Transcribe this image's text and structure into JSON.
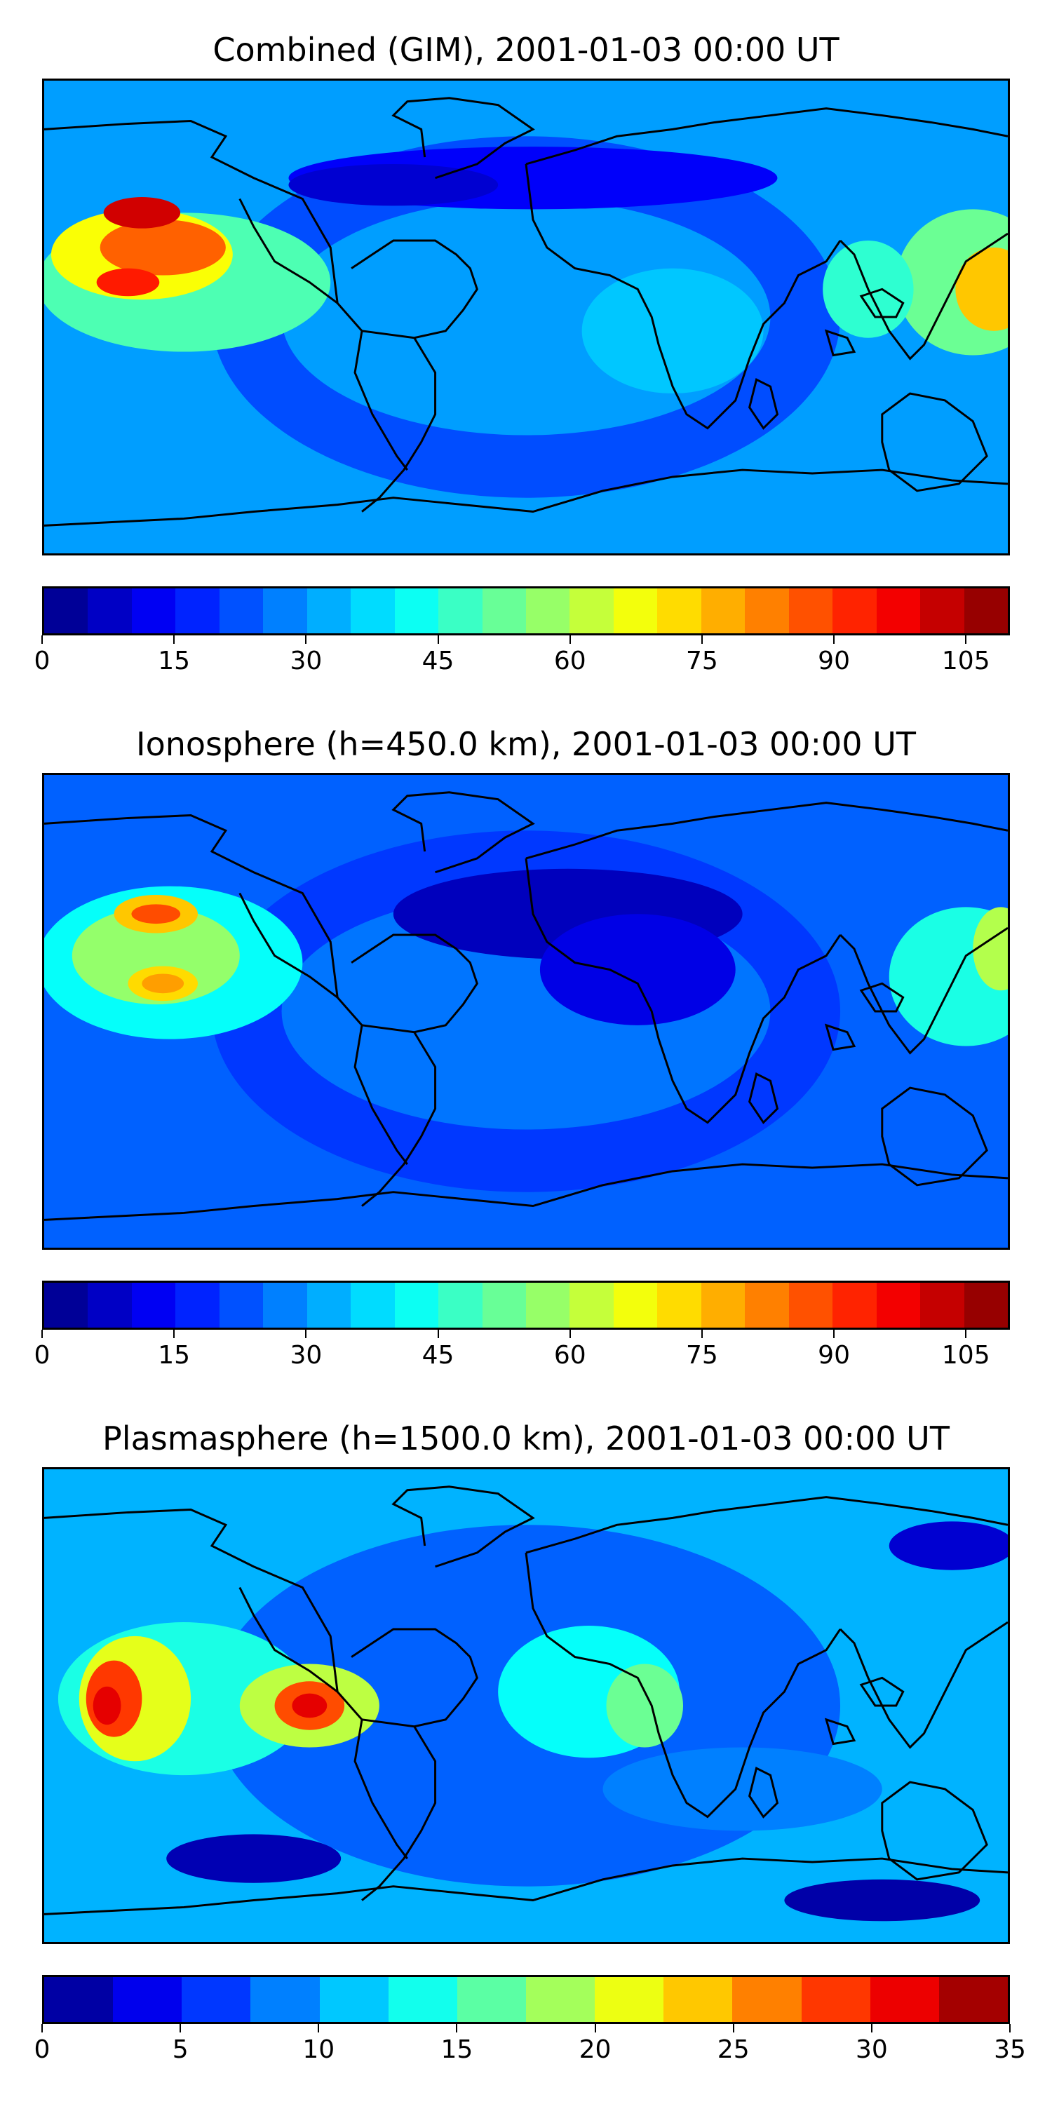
{
  "chart_data": [
    {
      "type": "heatmap",
      "title": "Combined (GIM), 2001-01-03 00:00 UT",
      "colorbar": {
        "min": 0,
        "max": 110,
        "step": 5,
        "ticks": [
          0,
          15,
          30,
          45,
          60,
          75,
          90,
          105
        ]
      },
      "features": [
        {
          "region": "Pacific west of Central America",
          "value": 105
        },
        {
          "region": "Pacific west of northern South America",
          "value": 95
        },
        {
          "region": "Western Pacific near Australia/Indonesia",
          "value": 75
        },
        {
          "region": "North Atlantic / Europe",
          "value": 10
        }
      ]
    },
    {
      "type": "heatmap",
      "title": "Ionosphere  (h=450.0 km), 2001-01-03 00:00 UT",
      "colorbar": {
        "min": 0,
        "max": 110,
        "step": 5,
        "ticks": [
          0,
          15,
          30,
          45,
          60,
          75,
          90,
          105
        ]
      },
      "features": [
        {
          "region": "Pacific west of Central America",
          "value": 85
        },
        {
          "region": "Pacific west of northern South America",
          "value": 80
        },
        {
          "region": "Western Pacific near Australia/Indonesia",
          "value": 65
        },
        {
          "region": "Europe / Africa / Asia",
          "value": 5
        }
      ]
    },
    {
      "type": "heatmap",
      "title": "Plasmasphere (h=1500.0 km), 2001-01-03 00:00 UT",
      "colorbar": {
        "min": 0,
        "max": 35,
        "step": 2.5,
        "ticks": [
          0,
          5,
          10,
          15,
          20,
          25,
          30,
          35
        ]
      },
      "features": [
        {
          "region": "Pacific near Hawaii",
          "value": 30
        },
        {
          "region": "Northern South America",
          "value": 30
        },
        {
          "region": "Central Africa",
          "value": 17
        },
        {
          "region": "Southern Pacific / Indian Ocean",
          "value": 2
        }
      ]
    }
  ],
  "colors": {
    "jet": [
      "#00007f",
      "#0000bf",
      "#0000ff",
      "#0040ff",
      "#0080ff",
      "#00bfff",
      "#19ffe5",
      "#4dffb2",
      "#80ff80",
      "#b2ff4d",
      "#e5ff19",
      "#ffd500",
      "#ff9c00",
      "#ff6200",
      "#ff2800",
      "#d90000",
      "#7f0000"
    ],
    "jet22": [
      "#00007f",
      "#00009f",
      "#0000df",
      "#0000ff",
      "#0030ff",
      "#0060ff",
      "#0090ff",
      "#00bfff",
      "#19f0e5",
      "#20ffd7",
      "#50ffa5",
      "#80ff80",
      "#a0ff5f",
      "#d0ff2f",
      "#f5ff00",
      "#ffd700",
      "#ffa800",
      "#ff7800",
      "#ff4800",
      "#ff1800",
      "#d80000",
      "#900000"
    ]
  }
}
